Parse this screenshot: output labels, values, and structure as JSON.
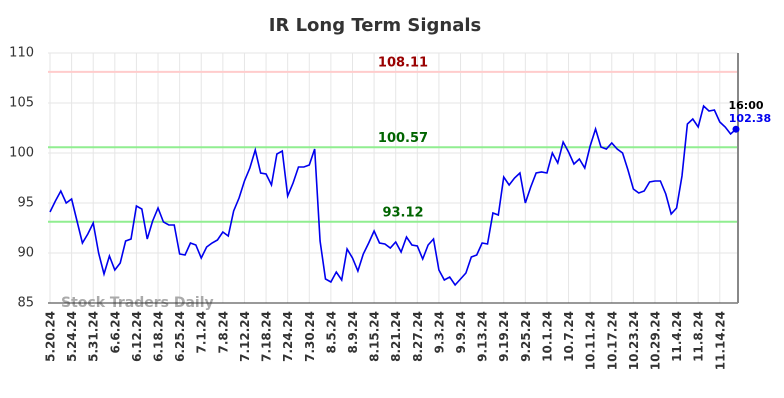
{
  "chart_data": {
    "type": "line",
    "title": "IR Long Term Signals",
    "watermark": "Stock Traders Daily",
    "categories": [
      "5.20.24",
      null,
      null,
      null,
      "5.24.24",
      null,
      null,
      null,
      "5.31.24",
      null,
      null,
      null,
      "6.6.24",
      null,
      null,
      null,
      "6.12.24",
      null,
      null,
      null,
      "6.18.24",
      null,
      null,
      null,
      "6.25.24",
      null,
      null,
      null,
      "7.1.24",
      null,
      null,
      null,
      "7.8.24",
      null,
      null,
      null,
      "7.12.24",
      null,
      null,
      null,
      "7.18.24",
      null,
      null,
      null,
      "7.24.24",
      null,
      null,
      null,
      "7.30.24",
      null,
      null,
      null,
      "8.5.24",
      null,
      null,
      null,
      "8.9.24",
      null,
      null,
      null,
      "8.15.24",
      null,
      null,
      null,
      "8.21.24",
      null,
      null,
      null,
      "8.27.24",
      null,
      null,
      null,
      "9.3.24",
      null,
      null,
      null,
      "9.9.24",
      null,
      null,
      null,
      "9.13.24",
      null,
      null,
      null,
      "9.19.24",
      null,
      null,
      null,
      "9.25.24",
      null,
      null,
      null,
      "10.1.24",
      null,
      null,
      null,
      "10.7.24",
      null,
      null,
      null,
      "10.11.24",
      null,
      null,
      null,
      "10.17.24",
      null,
      null,
      null,
      "10.23.24",
      null,
      null,
      null,
      "10.29.24",
      null,
      null,
      null,
      "11.4.24",
      null,
      null,
      null,
      "11.8.24",
      null,
      null,
      null,
      "11.14.24",
      null,
      null,
      null
    ],
    "series": [
      {
        "color": "#0000ee",
        "values": [
          94.1,
          95.2,
          96.2,
          95.0,
          95.4,
          93.2,
          91.0,
          91.9,
          93.0,
          90.0,
          87.9,
          89.7,
          88.3,
          89.0,
          91.2,
          91.4,
          94.7,
          94.4,
          91.4,
          93.2,
          94.5,
          93.1,
          92.8,
          92.8,
          89.9,
          89.8,
          91.0,
          90.8,
          89.5,
          90.6,
          91.0,
          91.3,
          92.1,
          91.7,
          94.2,
          95.5,
          97.2,
          98.5,
          100.3,
          98.0,
          97.9,
          96.8,
          99.9,
          100.2,
          95.7,
          97.0,
          98.6,
          98.6,
          98.8,
          100.4,
          91.2,
          87.4,
          87.1,
          88.1,
          87.3,
          90.4,
          89.5,
          88.2,
          89.9,
          91.0,
          92.2,
          91.0,
          90.9,
          90.5,
          91.1,
          90.1,
          91.6,
          90.8,
          90.7,
          89.4,
          90.8,
          91.4,
          88.3,
          87.3,
          87.6,
          86.8,
          87.4,
          88.0,
          89.6,
          89.8,
          91.0,
          90.9,
          94.0,
          93.8,
          97.6,
          96.8,
          97.5,
          98.0,
          95.0,
          96.6,
          98.0,
          98.1,
          98.0,
          100.0,
          99.0,
          101.1,
          100.1,
          98.9,
          99.4,
          98.5,
          100.7,
          102.4,
          100.6,
          100.4,
          101.0,
          100.4,
          100.0,
          98.3,
          96.4,
          96.0,
          96.2,
          97.1,
          97.2,
          97.2,
          95.9,
          93.9,
          94.5,
          97.7,
          102.9,
          103.4,
          102.6,
          104.7,
          104.2,
          104.3,
          103.1,
          102.6,
          101.9,
          102.38
        ]
      }
    ],
    "last_label": "16:00",
    "hlines": [
      {
        "value": 108.11,
        "color": "#ffcccc",
        "label_color": "#990000"
      },
      {
        "value": 100.57,
        "color": "#90ee90",
        "label_color": "#006400"
      },
      {
        "value": 93.12,
        "color": "#90ee90",
        "label_color": "#006400"
      }
    ],
    "ylim": [
      85,
      110
    ],
    "yticks": [
      85,
      90,
      95,
      100,
      105,
      110
    ],
    "grid": true
  }
}
